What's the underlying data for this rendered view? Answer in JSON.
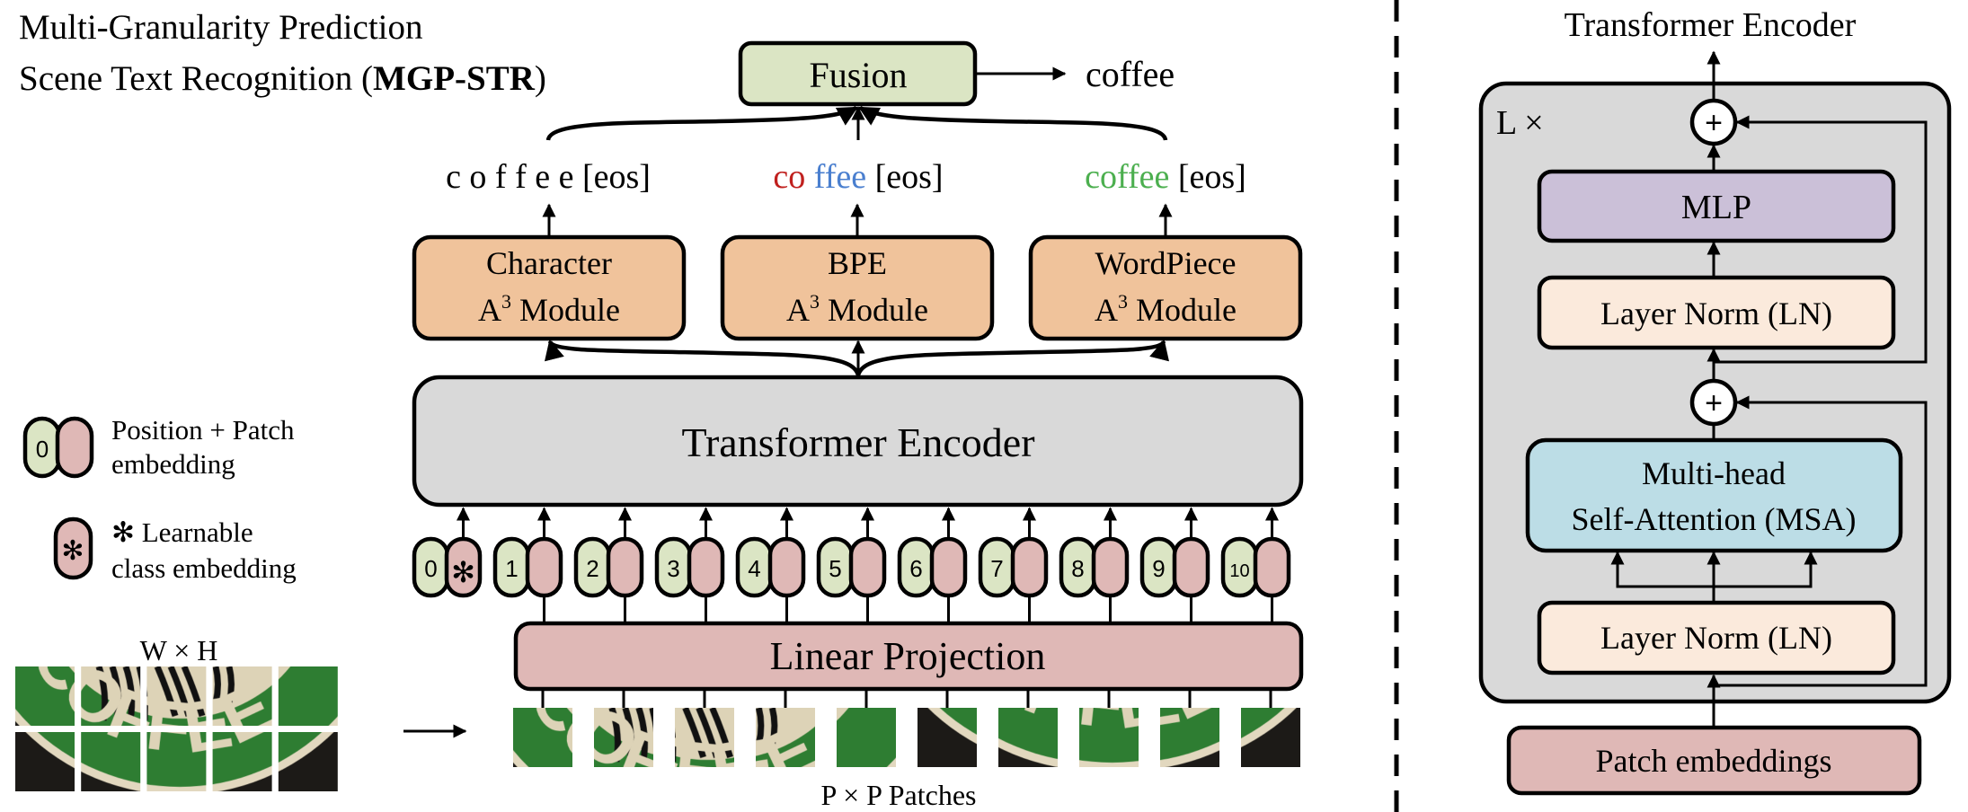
{
  "title": {
    "line1": "Multi-Granularity Prediction",
    "line2_prefix": "Scene Text Recognition (",
    "line2_bold": "MGP-STR",
    "line2_suffix": ")"
  },
  "fusion": {
    "label": "Fusion",
    "output": "coffee"
  },
  "predictions": {
    "character": "c o f f e e [eos]",
    "bpe": {
      "part1": "co",
      "part2": "ffee",
      "eos": "[eos]"
    },
    "wordpiece": {
      "word": "coffee",
      "eos": "[eos]"
    }
  },
  "modules": [
    {
      "name": "Character",
      "a": "A",
      "sup": "3",
      "suffix": " Module"
    },
    {
      "name": "BPE",
      "a": "A",
      "sup": "3",
      "suffix": " Module"
    },
    {
      "name": "WordPiece",
      "a": "A",
      "sup": "3",
      "suffix": " Module"
    }
  ],
  "encoder": {
    "label": "Transformer  Encoder"
  },
  "tokens": [
    "0",
    "1",
    "2",
    "3",
    "4",
    "5",
    "6",
    "7",
    "8",
    "9",
    "10"
  ],
  "class_token_symbol": "✻",
  "projection": {
    "label": "Linear Projection"
  },
  "patches_label": "P × P Patches",
  "image_label": "W × H",
  "image_logo_text": "COFFEE",
  "legend": {
    "pos_symbol": "0",
    "pos_line1": "Position + Patch",
    "pos_line2": "embedding",
    "cls_symbol": "✻",
    "cls_line1": "✻ Learnable",
    "cls_line2": "class embedding"
  },
  "detail": {
    "title": "Transformer  Encoder",
    "repeat": "L ×",
    "plus": "+",
    "mlp": "MLP",
    "ln": "Layer Norm (LN)",
    "msa_line1": "Multi-head",
    "msa_line2": "Self-Attention (MSA)",
    "input": "Patch embeddings"
  },
  "colors": {
    "green": "#dbe5c4",
    "orange": "#f0c39b",
    "gray": "#d9d9d9",
    "pink": "#dfb8b6",
    "purple": "#cbc0d8",
    "cream": "#fbeadc",
    "blue": "#bcdde6",
    "red_text": "#c0201e",
    "blue_text": "#4a7fcf",
    "green_text": "#4caf4f"
  }
}
